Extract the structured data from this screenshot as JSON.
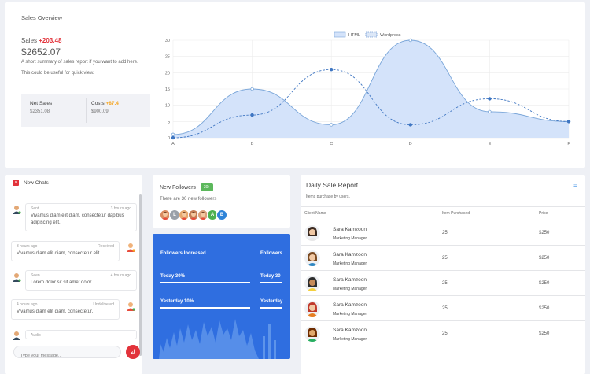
{
  "overview": {
    "title": "Sales Overview",
    "sales_label": "Sales",
    "sales_delta": "+203.48",
    "sales_value": "$2652.07",
    "summary_1": "A short summary of sales report if you want to add here.",
    "summary_2": "This could be useful for quick view.",
    "net_sales_label": "Net Sales",
    "net_sales_value": "$2351.08",
    "costs_label": "Costs",
    "costs_delta": "+87.4",
    "costs_value": "$900.09"
  },
  "chart_data": {
    "type": "area",
    "categories": [
      "A",
      "B",
      "C",
      "D",
      "E",
      "F"
    ],
    "ylim": [
      0,
      30
    ],
    "yticks": [
      0,
      5,
      10,
      15,
      20,
      25,
      30
    ],
    "series": [
      {
        "name": "HTML",
        "values": [
          1,
          15,
          4,
          30,
          8,
          5
        ],
        "color": "#7aa6d9",
        "fill": "#d4e3fa",
        "style": "solid"
      },
      {
        "name": "Wordpress",
        "values": [
          0,
          7,
          21,
          4,
          12,
          5
        ],
        "color": "#3f76c2",
        "style": "dashed"
      }
    ],
    "legend_position": "top-center",
    "grid": true
  },
  "chats": {
    "badge": "9",
    "title": "New Chats",
    "messages": [
      {
        "sender": "Sent",
        "time": "3 hours ago",
        "text": "Vivamus diam elit diam, consectetur dapibus adipiscing elit."
      },
      {
        "sender": "3 hours ago",
        "time": "Received",
        "text": "Vivamus diam elit diam, consectetur elit."
      },
      {
        "sender": "Seen",
        "time": "4 hours ago",
        "text": "Lorem dolor sit sit amet dolor."
      },
      {
        "sender": "4 hours ago",
        "time": "Undelivered",
        "text": "Vivamus diam elit diam, consectetur."
      },
      {
        "sender": "Audio",
        "time": "",
        "text": ""
      }
    ],
    "input_placeholder": "Type your message..."
  },
  "followers": {
    "title": "New Followers",
    "badge": "30+",
    "subtitle": "There are 30 new followers",
    "avatars": [
      {
        "letter": "",
        "color": "#d98b5f"
      },
      {
        "letter": "L",
        "color": "#9aa0a8"
      },
      {
        "letter": "",
        "color": "#e6a86f"
      },
      {
        "letter": "",
        "color": "#c47d55"
      },
      {
        "letter": "",
        "color": "#d9a07a"
      },
      {
        "letter": "A",
        "color": "#4cb050"
      },
      {
        "letter": "B",
        "color": "#2f84d8"
      }
    ]
  },
  "stats": {
    "left_title": "Followers Increased",
    "right_title": "Followers",
    "today_left": "Today 30%",
    "today_right": "Today 30",
    "yesterday_left": "Yesterday 10%",
    "yesterday_right": "Yesterday"
  },
  "report": {
    "title": "Daily Sale Report",
    "subtitle": "Items purchase by users.",
    "columns": [
      "Client Name",
      "Item Purchased",
      "Price"
    ],
    "rows": [
      {
        "name": "Sara Kamzoon",
        "role": "Marketing Manager",
        "items": "25",
        "price": "$250",
        "avatar": "woman-dark-hair"
      },
      {
        "name": "Sara Kamzoon",
        "role": "Marketing Manager",
        "items": "25",
        "price": "$250",
        "avatar": "man-brown-hair"
      },
      {
        "name": "Sara Kamzoon",
        "role": "Marketing Manager",
        "items": "25",
        "price": "$250",
        "avatar": "man-glasses"
      },
      {
        "name": "Sara Kamzoon",
        "role": "Marketing Manager",
        "items": "25",
        "price": "$250",
        "avatar": "woman-red-hair"
      },
      {
        "name": "Sara Kamzoon",
        "role": "Marketing Manager",
        "items": "25",
        "price": "$250",
        "avatar": "man-green-shirt"
      }
    ]
  }
}
